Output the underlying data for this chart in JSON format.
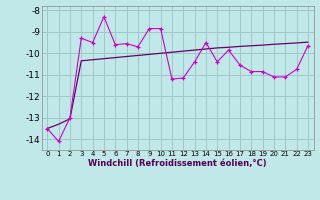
{
  "xlabel": "Windchill (Refroidissement éolien,°C)",
  "bg_color": "#c0e8e8",
  "grid_color": "#a0c8c8",
  "line1_color": "#cc00cc",
  "line2_color": "#660066",
  "marker": "+",
  "ylim": [
    -14.5,
    -7.8
  ],
  "xlim": [
    -0.5,
    23.5
  ],
  "yticks": [
    -14,
    -13,
    -12,
    -11,
    -10,
    -9,
    -8
  ],
  "xticks": [
    0,
    1,
    2,
    3,
    4,
    5,
    6,
    7,
    8,
    9,
    10,
    11,
    12,
    13,
    14,
    15,
    16,
    17,
    18,
    19,
    20,
    21,
    22,
    23
  ],
  "jagged_y": [
    -13.5,
    -14.1,
    -13.0,
    -9.3,
    -9.5,
    -8.3,
    -9.6,
    -9.55,
    -9.7,
    -8.85,
    -8.85,
    -11.2,
    -11.15,
    -10.4,
    -9.5,
    -10.4,
    -9.85,
    -10.55,
    -10.85,
    -10.85,
    -11.1,
    -11.1,
    -10.75,
    -9.65
  ],
  "smooth_y": [
    -13.5,
    -13.3,
    -13.05,
    -10.35,
    -10.3,
    -10.25,
    -10.2,
    -10.15,
    -10.1,
    -10.05,
    -10.0,
    -9.95,
    -9.9,
    -9.85,
    -9.8,
    -9.75,
    -9.72,
    -9.68,
    -9.65,
    -9.62,
    -9.58,
    -9.55,
    -9.52,
    -9.48
  ]
}
